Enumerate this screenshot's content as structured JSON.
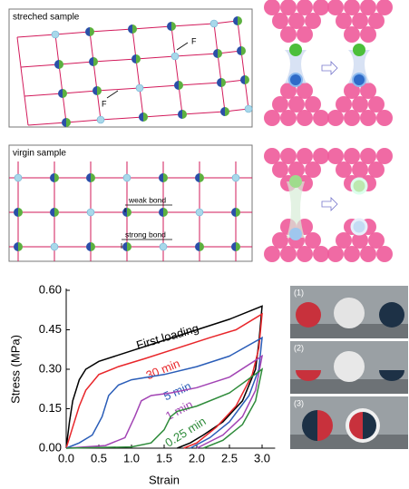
{
  "diagrams": {
    "stretched_label": "streched sample",
    "force_labels": [
      "F",
      "F"
    ],
    "virgin_label": "virgin sample",
    "weak_bond_label": "weak bond",
    "strong_bond_label": "strong bond"
  },
  "photos": {
    "labels": [
      "(1)",
      "(2)",
      "(3)"
    ]
  },
  "chart_data": {
    "type": "line",
    "xlabel": "Strain",
    "ylabel": "Stress (MPa)",
    "xlim": [
      0,
      3.2
    ],
    "ylim": [
      0,
      0.6
    ],
    "xticks": [
      {
        "value": 0,
        "label": "0.0"
      },
      {
        "value": 0.5,
        "label": "0.5"
      },
      {
        "value": 1,
        "label": "1.0"
      },
      {
        "value": 1.5,
        "label": "1.5"
      },
      {
        "value": 2,
        "label": "2.0"
      },
      {
        "value": 2.5,
        "label": "2.5"
      },
      {
        "value": 3,
        "label": "3.0"
      }
    ],
    "yticks": [
      {
        "value": 0,
        "label": "0.00"
      },
      {
        "value": 0.15,
        "label": "0.15"
      },
      {
        "value": 0.3,
        "label": "0.30"
      },
      {
        "value": 0.45,
        "label": "0.45"
      },
      {
        "value": 0.6,
        "label": "0.60"
      }
    ],
    "series": [
      {
        "name": "First loading",
        "color": "#000000",
        "x": [
          0,
          0.05,
          0.1,
          0.2,
          0.3,
          0.5,
          1,
          1.5,
          2,
          2.5,
          3,
          2.95,
          2.9,
          2.7,
          2.4,
          2.1,
          1.9,
          1.7
        ],
        "values": [
          0,
          0.1,
          0.18,
          0.26,
          0.3,
          0.33,
          0.37,
          0.41,
          0.45,
          0.49,
          0.54,
          0.4,
          0.3,
          0.18,
          0.1,
          0.05,
          0.02,
          0
        ]
      },
      {
        "name": "30 min",
        "color": "#e8262a",
        "x": [
          0,
          0.1,
          0.2,
          0.3,
          0.5,
          0.8,
          1.2,
          1.7,
          2.2,
          2.6,
          3,
          2.95,
          2.85,
          2.6,
          2.3,
          2,
          1.8
        ],
        "values": [
          0,
          0.08,
          0.16,
          0.22,
          0.28,
          0.31,
          0.34,
          0.38,
          0.42,
          0.45,
          0.51,
          0.38,
          0.28,
          0.16,
          0.08,
          0.02,
          0
        ]
      },
      {
        "name": "5 min",
        "color": "#2a5db8",
        "x": [
          0,
          0.2,
          0.4,
          0.55,
          0.65,
          0.8,
          1,
          1.5,
          2,
          2.5,
          3,
          2.95,
          2.8,
          2.5,
          2.2,
          1.9
        ],
        "values": [
          0,
          0.02,
          0.05,
          0.12,
          0.2,
          0.24,
          0.26,
          0.28,
          0.31,
          0.35,
          0.42,
          0.3,
          0.2,
          0.1,
          0.04,
          0
        ]
      },
      {
        "name": "1 min",
        "color": "#a244b4",
        "x": [
          0,
          0.6,
          0.9,
          1.05,
          1.15,
          1.3,
          1.6,
          2,
          2.5,
          3,
          2.9,
          2.7,
          2.4,
          2
        ],
        "values": [
          0,
          0.01,
          0.04,
          0.12,
          0.18,
          0.2,
          0.21,
          0.23,
          0.27,
          0.35,
          0.22,
          0.12,
          0.05,
          0
        ]
      },
      {
        "name": "0.25 min",
        "color": "#2e8b3a",
        "x": [
          0,
          1,
          1.3,
          1.5,
          1.6,
          1.7,
          2,
          2.5,
          3,
          2.9,
          2.7,
          2.4,
          2.1
        ],
        "values": [
          0,
          0.005,
          0.02,
          0.07,
          0.12,
          0.14,
          0.16,
          0.21,
          0.3,
          0.18,
          0.09,
          0.03,
          0
        ]
      }
    ]
  }
}
